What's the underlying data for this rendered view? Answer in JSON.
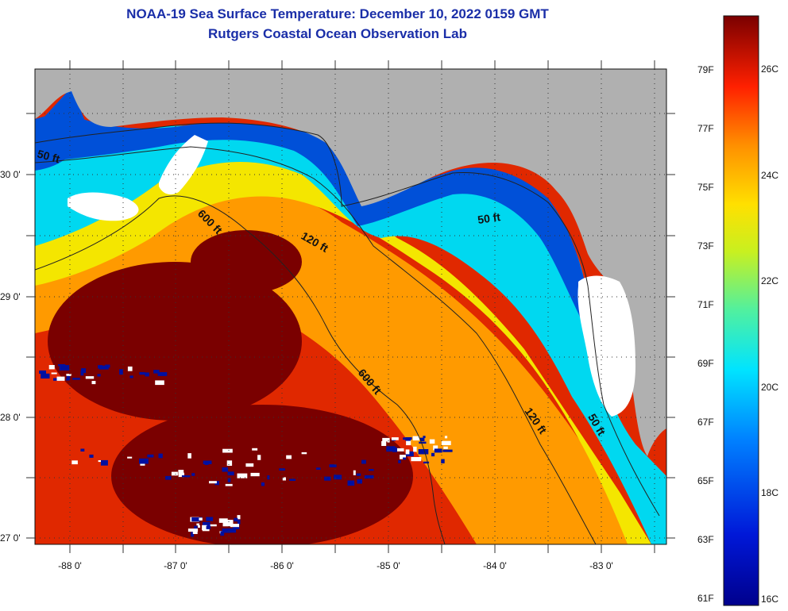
{
  "header": {
    "title": "NOAA-19 Sea Surface Temperature:  December 10, 2022 0159 GMT",
    "subtitle": "Rutgers Coastal Ocean Observation Lab"
  },
  "map": {
    "lon_labels": [
      "-88 0'",
      "-87 0'",
      "-86 0'",
      "-85 0'",
      "-84 0'",
      "-83 0'"
    ],
    "lat_labels": [
      "30 0'",
      "29 0'",
      "28 0'",
      "27 0'"
    ],
    "contours": [
      {
        "label": "50 ft"
      },
      {
        "label": "600 ft"
      },
      {
        "label": "120 ft"
      },
      {
        "label": "50 ft"
      },
      {
        "label": "600 ft"
      },
      {
        "label": "120 ft"
      },
      {
        "label": "50 ft"
      }
    ],
    "colors": {
      "land": "#b0b0b0",
      "cloud": "#ffffff",
      "hot": "#7a0000",
      "warm": "#e02800",
      "orange": "#ff9a00",
      "yellow": "#f4e600",
      "green": "#7ee060",
      "cyan": "#00d8f0",
      "blue": "#0050d8",
      "dark_blue": "#0010a0"
    }
  },
  "colorbar": {
    "fahrenheit_labels": [
      "79F",
      "77F",
      "75F",
      "73F",
      "71F",
      "69F",
      "67F",
      "65F",
      "63F",
      "61F"
    ],
    "celsius_labels": [
      "26C",
      "24C",
      "22C",
      "20C",
      "18C",
      "16C"
    ]
  }
}
